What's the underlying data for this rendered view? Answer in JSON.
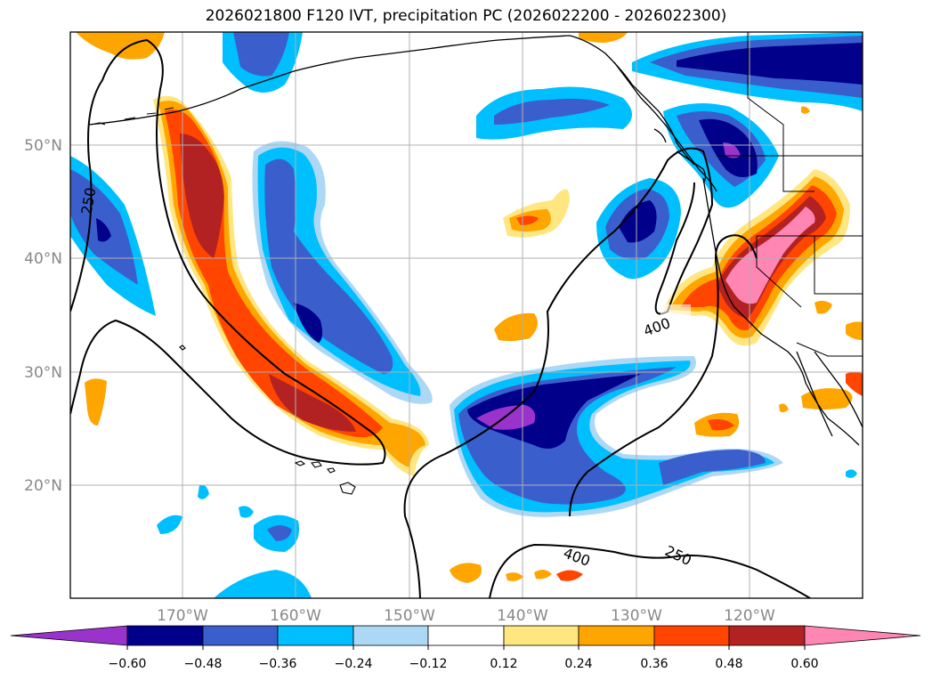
{
  "title": "2026021800 F120 IVT, precipitation PC (2026022200 - 2026022300)",
  "colors": {
    "neg_060_below": "#9933cc",
    "neg_048": "#00008b",
    "neg_036": "#3a5fcd",
    "neg_024": "#00bfff",
    "neg_012": "#add8f5",
    "zero": "#ffffff",
    "pos_012": "#ffe680",
    "pos_024": "#ffa500",
    "pos_036": "#ff4500",
    "pos_048": "#b22222",
    "pos_060_above": "#ff85b2"
  },
  "lat_labels": [
    "20°N",
    "30°N",
    "40°N",
    "50°N"
  ],
  "lon_labels": [
    "170°W",
    "160°W",
    "150°W",
    "140°W",
    "130°W",
    "120°W"
  ],
  "contour_labels": [
    "250",
    "400",
    "400",
    "250"
  ],
  "colorbar_ticks": [
    "−0.60",
    "−0.48",
    "−0.36",
    "−0.24",
    "−0.12",
    "0.12",
    "0.24",
    "0.36",
    "0.48",
    "0.60"
  ]
}
